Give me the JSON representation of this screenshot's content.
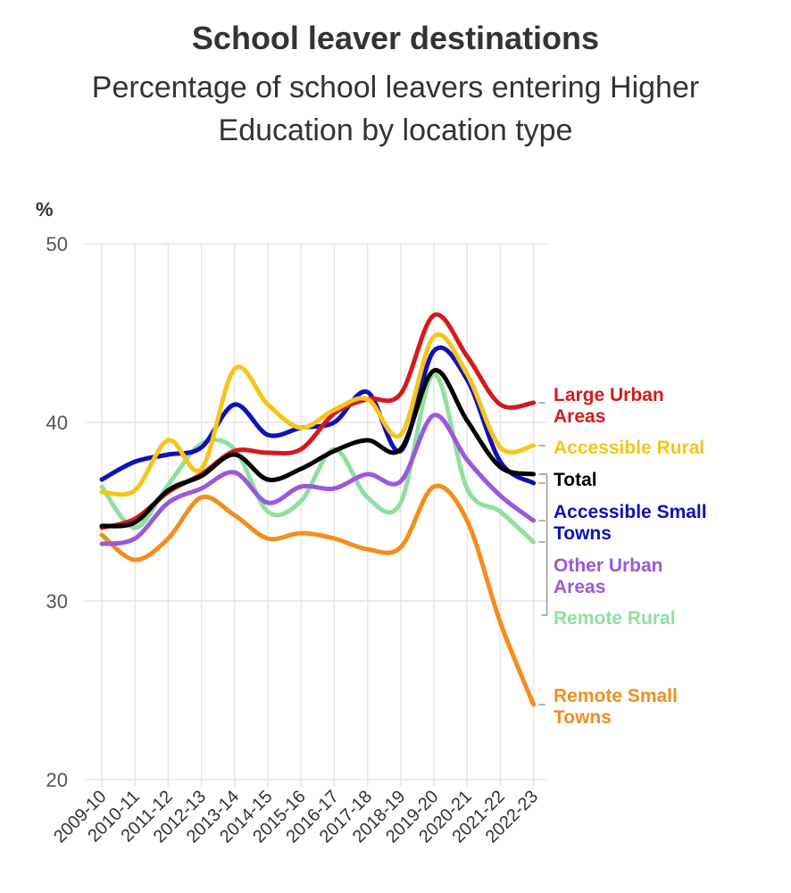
{
  "title": "School leaver destinations",
  "subtitle_line1": "Percentage of school leavers entering Higher",
  "subtitle_line2": "Education by location type",
  "chart_data": {
    "type": "line",
    "title": "School leaver destinations",
    "subtitle": "Percentage of school leavers entering Higher Education by location type",
    "ylabel": "%",
    "xlabel": "",
    "ylim": [
      20,
      50
    ],
    "yticks": [
      20,
      30,
      40,
      50
    ],
    "grid": true,
    "legend": "direct labels at right end of lines",
    "categories": [
      "2009-10",
      "2010-11",
      "2011-12",
      "2012-13",
      "2013-14",
      "2014-15",
      "2015-16",
      "2016-17",
      "2017-18",
      "2018-19",
      "2019-20",
      "2020-21",
      "2021-22",
      "2022-23"
    ],
    "series": [
      {
        "name": "Large Urban Areas",
        "label_lines": [
          "Large Urban",
          "Areas"
        ],
        "color": "#d7191c",
        "values": [
          34.1,
          34.6,
          36.1,
          37.1,
          38.4,
          38.3,
          38.5,
          40.5,
          41.3,
          41.6,
          46.0,
          43.7,
          41.0,
          41.1
        ]
      },
      {
        "name": "Accessible Rural",
        "label_lines": [
          "Accessible Rural"
        ],
        "color": "#f5c518",
        "values": [
          36.1,
          36.2,
          39.0,
          37.4,
          43.0,
          41.0,
          39.7,
          40.7,
          41.3,
          39.3,
          44.8,
          42.7,
          38.6,
          38.7
        ]
      },
      {
        "name": "Total",
        "label_lines": [
          "Total"
        ],
        "color": "#000000",
        "values": [
          34.2,
          34.4,
          36.2,
          37.0,
          38.2,
          36.8,
          37.4,
          38.4,
          39.0,
          38.5,
          42.9,
          40.1,
          37.5,
          37.1
        ]
      },
      {
        "name": "Accessible Small Towns",
        "label_lines": [
          "Accessible Small",
          "Towns"
        ],
        "color": "#1010b8",
        "values": [
          36.8,
          37.8,
          38.2,
          38.6,
          41.0,
          39.3,
          39.7,
          40.0,
          41.7,
          38.4,
          44.0,
          42.4,
          37.8,
          36.6
        ]
      },
      {
        "name": "Other Urban Areas",
        "label_lines": [
          "Other Urban",
          "Areas"
        ],
        "color": "#9b59d9",
        "values": [
          33.2,
          33.5,
          35.5,
          36.3,
          37.2,
          35.5,
          36.4,
          36.3,
          37.1,
          36.7,
          40.4,
          37.9,
          35.9,
          34.5
        ]
      },
      {
        "name": "Remote Rural",
        "label_lines": [
          "Remote Rural"
        ],
        "color": "#8fe0a0",
        "values": [
          36.4,
          34.1,
          36.5,
          38.8,
          38.5,
          35.0,
          35.6,
          38.5,
          35.8,
          35.5,
          42.7,
          36.3,
          35.0,
          33.3
        ]
      },
      {
        "name": "Remote Small Towns",
        "label_lines": [
          "Remote Small",
          "Towns"
        ],
        "color": "#f28e1c",
        "values": [
          33.7,
          32.3,
          33.5,
          35.8,
          34.8,
          33.5,
          33.8,
          33.5,
          32.9,
          33.0,
          36.4,
          34.5,
          28.8,
          24.2
        ]
      }
    ]
  }
}
